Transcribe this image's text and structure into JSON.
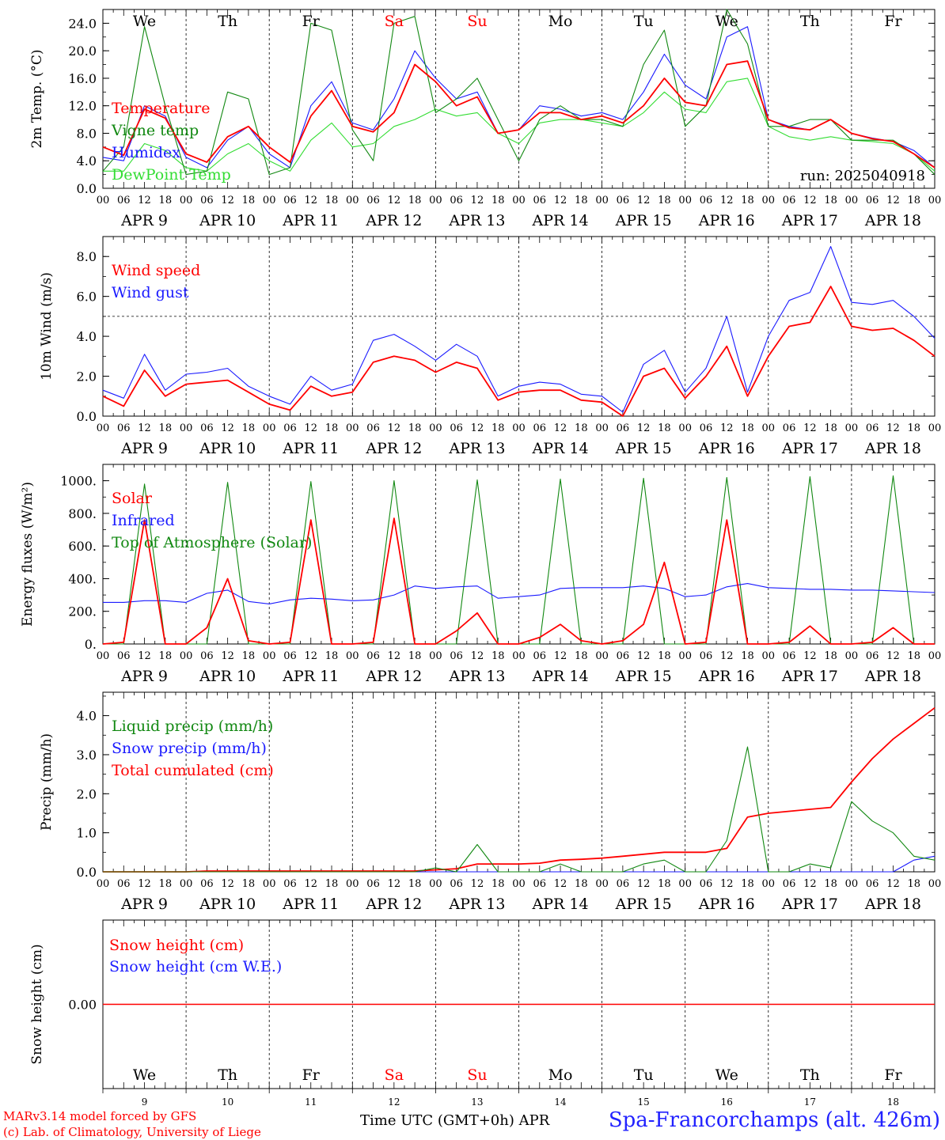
{
  "footer": {
    "model_line": "MARv3.14 model forced by GFS",
    "lab_line": "(c) Lab. of Climatology, University of Liege",
    "time_label": "Time UTC (GMT+0h) APR",
    "station": "Spa-Francorchamps (alt. 426m)"
  },
  "colors": {
    "red": "#ff0000",
    "green": "#118811",
    "blue": "#1a1aff",
    "lightgreen": "#33dd33",
    "black": "#000000"
  },
  "hour_ticks": [
    "00",
    "06",
    "12",
    "18"
  ],
  "date_labels": [
    "APR  9",
    "APR 10",
    "APR 11",
    "APR 12",
    "APR 13",
    "APR 14",
    "APR 15",
    "APR 16",
    "APR 17",
    "APR 18"
  ],
  "weekdays": [
    {
      "label": "We",
      "color": "black"
    },
    {
      "label": "Th",
      "color": "black"
    },
    {
      "label": "Fr",
      "color": "black"
    },
    {
      "label": "Sa",
      "color": "red"
    },
    {
      "label": "Su",
      "color": "red"
    },
    {
      "label": "Mo",
      "color": "black"
    },
    {
      "label": "Tu",
      "color": "black"
    },
    {
      "label": "We",
      "color": "black"
    },
    {
      "label": "Th",
      "color": "black"
    },
    {
      "label": "Fr",
      "color": "black"
    }
  ],
  "day_numbers": [
    "9",
    "10",
    "11",
    "12",
    "13",
    "14",
    "15",
    "16",
    "17",
    "18"
  ],
  "chart_data": [
    {
      "type": "line",
      "ylabel": "2m Temp. (°C)",
      "ylim": [
        0,
        26
      ],
      "yticks": [
        "0.0",
        "4.0",
        "8.0",
        "12.0",
        "16.0",
        "20.0",
        "24.0"
      ],
      "ytick_values": [
        0,
        4,
        8,
        12,
        16,
        20,
        24
      ],
      "annotation": "run: 2025040918",
      "x_hours": [
        0,
        6,
        12,
        18,
        24,
        30,
        36,
        42,
        48,
        54,
        60,
        66,
        72,
        78,
        84,
        90,
        96,
        102,
        108,
        114,
        120,
        126,
        132,
        138,
        144,
        150,
        156,
        162,
        168,
        174,
        180,
        186,
        192,
        198,
        204,
        210,
        216,
        222,
        228,
        234,
        240
      ],
      "series": [
        {
          "name": "Temperature",
          "color": "red",
          "values": [
            6,
            4.8,
            11.5,
            10.2,
            5,
            3.8,
            7.5,
            9,
            6,
            3.8,
            10.5,
            14.2,
            9,
            8.2,
            11,
            18,
            15.5,
            12,
            13.3,
            8,
            8.5,
            11,
            11,
            10,
            10.5,
            9.5,
            12,
            16,
            12.5,
            12,
            18,
            18.5,
            10,
            8.8,
            8.5,
            10,
            8,
            7.2,
            6.8,
            5,
            3
          ]
        },
        {
          "name": "Vigne temp",
          "color": "green",
          "values": [
            2.5,
            6,
            23.5,
            12,
            2,
            2.5,
            14,
            13,
            2,
            3,
            24,
            23,
            8.5,
            4,
            24,
            25,
            11,
            13,
            16,
            10,
            4,
            10,
            12,
            10,
            10,
            9,
            18,
            23,
            9,
            12,
            27,
            21,
            9,
            9,
            10,
            10,
            7,
            7,
            7,
            5,
            2
          ]
        },
        {
          "name": "Humidex",
          "color": "blue",
          "values": [
            4.5,
            4,
            12,
            10.5,
            4.5,
            3,
            7,
            9,
            5,
            3,
            12,
            15.5,
            9.5,
            8.5,
            13,
            20,
            16,
            13,
            14,
            8,
            8.5,
            12,
            11.5,
            10.5,
            11,
            10,
            14,
            19.5,
            15,
            13,
            22,
            23.5,
            10,
            9,
            8.5,
            10,
            8,
            7.3,
            6.8,
            5.5,
            3
          ]
        },
        {
          "name": "DewPoint Temp",
          "color": "lightgreen",
          "values": [
            2.5,
            2.5,
            6.5,
            5.5,
            3,
            2.5,
            5,
            6.5,
            4,
            2.5,
            7,
            9.5,
            6,
            6.5,
            9,
            10,
            11.5,
            10.5,
            11,
            8,
            6.5,
            9.5,
            10,
            10,
            9.5,
            9,
            11,
            14,
            11.5,
            11,
            15.5,
            16,
            9,
            7.5,
            7,
            7.5,
            7,
            6.8,
            6.5,
            5,
            2.5
          ]
        }
      ]
    },
    {
      "type": "line",
      "ylabel": "10m Wind (m/s)",
      "ylim": [
        0,
        9
      ],
      "yticks": [
        "0.0",
        "2.0",
        "4.0",
        "6.0",
        "8.0"
      ],
      "ytick_values": [
        0,
        2,
        4,
        6,
        8
      ],
      "reference_line": 5,
      "x_hours": [
        0,
        6,
        12,
        18,
        24,
        30,
        36,
        42,
        48,
        54,
        60,
        66,
        72,
        78,
        84,
        90,
        96,
        102,
        108,
        114,
        120,
        126,
        132,
        138,
        144,
        150,
        156,
        162,
        168,
        174,
        180,
        186,
        192,
        198,
        204,
        210,
        216,
        222,
        228,
        234,
        240
      ],
      "series": [
        {
          "name": "Wind speed",
          "color": "red",
          "values": [
            1,
            0.5,
            2.3,
            1,
            1.6,
            1.7,
            1.8,
            1.2,
            0.6,
            0.3,
            1.5,
            1,
            1.2,
            2.7,
            3,
            2.8,
            2.2,
            2.7,
            2.4,
            0.8,
            1.2,
            1.3,
            1.3,
            0.8,
            0.7,
            0,
            2,
            2.4,
            0.9,
            2,
            3.5,
            1,
            3,
            4.5,
            4.7,
            6.5,
            4.5,
            4.3,
            4.4,
            3.8,
            3
          ]
        },
        {
          "name": "Wind gust",
          "color": "blue",
          "values": [
            1.3,
            0.9,
            3.1,
            1.3,
            2.1,
            2.2,
            2.4,
            1.5,
            1,
            0.6,
            2,
            1.3,
            1.6,
            3.8,
            4.1,
            3.5,
            2.8,
            3.6,
            3,
            1,
            1.5,
            1.7,
            1.6,
            1.1,
            1,
            0.2,
            2.6,
            3.3,
            1.2,
            2.4,
            5,
            1.2,
            4,
            5.8,
            6.2,
            8.5,
            5.7,
            5.6,
            5.8,
            5,
            3.9
          ]
        }
      ]
    },
    {
      "type": "line",
      "ylabel": "Energy fluxes (W/m²)",
      "ylim": [
        0,
        1100
      ],
      "yticks": [
        "0.",
        "200.",
        "400.",
        "600.",
        "800.",
        "1000."
      ],
      "ytick_values": [
        0,
        200,
        400,
        600,
        800,
        1000
      ],
      "x_hours": [
        0,
        6,
        12,
        18,
        24,
        30,
        36,
        42,
        48,
        54,
        60,
        66,
        72,
        78,
        84,
        90,
        96,
        102,
        108,
        114,
        120,
        126,
        132,
        138,
        144,
        150,
        156,
        162,
        168,
        174,
        180,
        186,
        192,
        198,
        204,
        210,
        216,
        222,
        228,
        234,
        240
      ],
      "series": [
        {
          "name": "Solar",
          "color": "red",
          "values": [
            0,
            10,
            760,
            0,
            0,
            100,
            400,
            20,
            0,
            10,
            760,
            0,
            0,
            10,
            770,
            0,
            0,
            80,
            190,
            0,
            0,
            40,
            120,
            20,
            0,
            20,
            120,
            500,
            0,
            10,
            760,
            0,
            0,
            10,
            110,
            0,
            0,
            10,
            100,
            0,
            0
          ]
        },
        {
          "name": "Infrared",
          "color": "blue",
          "values": [
            255,
            255,
            265,
            265,
            255,
            310,
            330,
            260,
            245,
            270,
            280,
            275,
            265,
            270,
            300,
            355,
            340,
            350,
            355,
            280,
            290,
            300,
            340,
            345,
            345,
            345,
            355,
            340,
            290,
            300,
            350,
            370,
            345,
            340,
            335,
            335,
            330,
            330,
            325,
            320,
            315
          ]
        },
        {
          "name": "Top of Atmosphere (Solar)",
          "color": "green",
          "values": [
            0,
            0,
            980,
            0,
            0,
            0,
            990,
            0,
            0,
            0,
            995,
            0,
            0,
            0,
            1000,
            0,
            0,
            0,
            1005,
            0,
            0,
            0,
            1010,
            0,
            0,
            0,
            1015,
            0,
            0,
            0,
            1020,
            0,
            0,
            0,
            1025,
            0,
            0,
            0,
            1030,
            0,
            0
          ]
        }
      ]
    },
    {
      "type": "line",
      "ylabel": "Precip (mm/h)",
      "ylim": [
        0,
        4.6
      ],
      "yticks": [
        "0.0",
        "1.0",
        "2.0",
        "3.0",
        "4.0"
      ],
      "ytick_values": [
        0,
        1,
        2,
        3,
        4
      ],
      "x_hours": [
        0,
        6,
        12,
        18,
        24,
        30,
        36,
        42,
        48,
        54,
        60,
        66,
        72,
        78,
        84,
        90,
        96,
        102,
        108,
        114,
        120,
        126,
        132,
        138,
        144,
        150,
        156,
        162,
        168,
        174,
        180,
        186,
        192,
        198,
        204,
        210,
        216,
        222,
        228,
        234,
        240
      ],
      "series": [
        {
          "name": "Liquid precip (mm/h)",
          "color": "green",
          "values": [
            0,
            0,
            0,
            0,
            0,
            0,
            0,
            0,
            0,
            0,
            0,
            0,
            0,
            0,
            0,
            0,
            0.1,
            0,
            0.7,
            0,
            0,
            0,
            0.2,
            0,
            0,
            0,
            0.2,
            0.3,
            0,
            0,
            0.8,
            3.2,
            0,
            0,
            0.2,
            0.1,
            1.8,
            1.3,
            1,
            0.4,
            0.3
          ]
        },
        {
          "name": "Snow precip (mm/h)",
          "color": "blue",
          "values": [
            0,
            0,
            0,
            0,
            0,
            0,
            0,
            0,
            0,
            0,
            0,
            0,
            0,
            0,
            0,
            0,
            0,
            0,
            0,
            0,
            0,
            0,
            0,
            0,
            0,
            0,
            0,
            0,
            0,
            0,
            0,
            0,
            0,
            0,
            0,
            0,
            0,
            0,
            0,
            0.3,
            0.4
          ]
        },
        {
          "name": "Total cumulated (cm)",
          "color": "red",
          "values": [
            0,
            0,
            0,
            0,
            0,
            0.02,
            0.02,
            0.02,
            0.02,
            0.02,
            0.02,
            0.02,
            0.02,
            0.02,
            0.02,
            0.02,
            0.05,
            0.08,
            0.2,
            0.2,
            0.2,
            0.22,
            0.3,
            0.32,
            0.35,
            0.4,
            0.45,
            0.5,
            0.5,
            0.5,
            0.6,
            1.4,
            1.5,
            1.55,
            1.6,
            1.65,
            2.3,
            2.9,
            3.4,
            3.8,
            4.2
          ]
        }
      ]
    },
    {
      "type": "line",
      "ylabel": "Snow height (cm)",
      "ylim": [
        -1,
        1
      ],
      "yticks": [
        "0.00"
      ],
      "ytick_values": [
        0
      ],
      "x_hours": [
        0,
        240
      ],
      "series": [
        {
          "name": "Snow height (cm)",
          "color": "red",
          "values": [
            0,
            0
          ]
        },
        {
          "name": "Snow height (cm W.E.)",
          "color": "blue",
          "values": [
            0,
            0
          ]
        }
      ]
    }
  ]
}
